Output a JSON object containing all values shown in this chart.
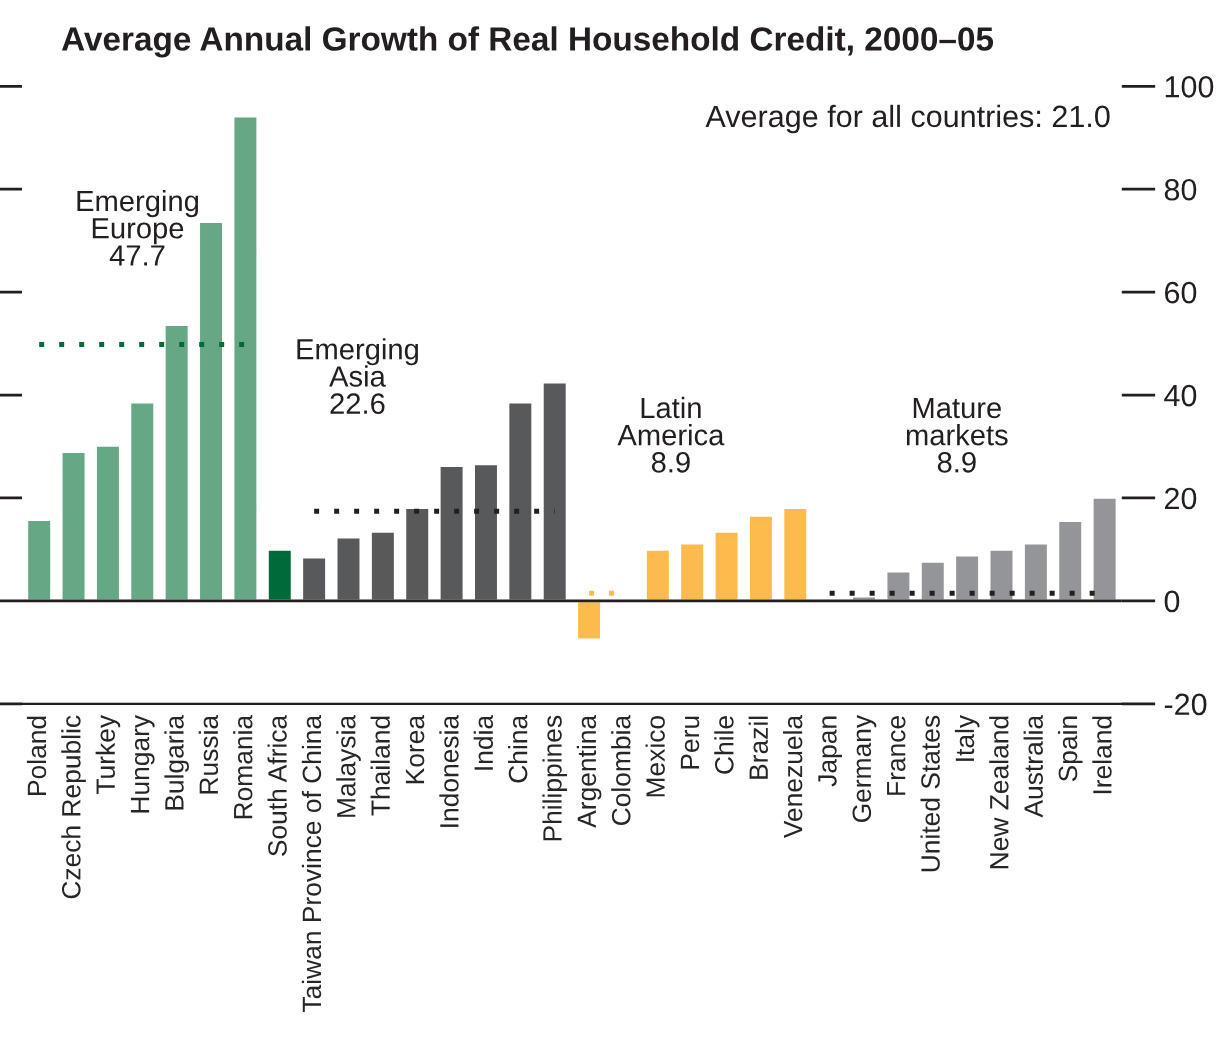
{
  "chart_data": {
    "type": "bar",
    "title": "Average Annual Growth of Real Household Credit, 2000–05",
    "categories": [
      "Poland",
      "Czech Republic",
      "Turkey",
      "Hungary",
      "Bulgaria",
      "Russia",
      "Romania",
      "South Africa",
      "Taiwan Province of China",
      "Malaysia",
      "Thailand",
      "Korea",
      "Indonesia",
      "India",
      "China",
      "Philippines",
      "Argentina",
      "Colombia",
      "Mexico",
      "Peru",
      "Chile",
      "Brazil",
      "Venezuela",
      "Japan",
      "Germany",
      "France",
      "United States",
      "Italy",
      "New Zealand",
      "Australia",
      "Spain",
      "Ireland"
    ],
    "series": [
      {
        "values": [
          15.8,
          29.0,
          30.2,
          38.6,
          53.7,
          73.7,
          94.2,
          10.0,
          8.5,
          12.4,
          13.5,
          18.1,
          26.3,
          26.6,
          38.6,
          42.5,
          -7.6,
          null,
          10.0,
          11.2,
          13.5,
          16.6,
          18.1,
          0.4,
          0.9,
          5.8,
          7.7,
          8.9,
          10.0,
          11.2,
          15.6,
          20.1
        ],
        "colors": [
          "#66a886",
          "#66a886",
          "#66a886",
          "#66a886",
          "#66a886",
          "#66a886",
          "#66a886",
          "#006b3a",
          "#58595b",
          "#58595b",
          "#58595b",
          "#58595b",
          "#58595b",
          "#58595b",
          "#58595b",
          "#58595b",
          "#fdbb4e",
          "#fdbb4e",
          "#fdbb4e",
          "#fdbb4e",
          "#fdbb4e",
          "#fdbb4e",
          "#fdbb4e",
          "#939598",
          "#939598",
          "#939598",
          "#939598",
          "#939598",
          "#939598",
          "#939598",
          "#939598",
          "#939598"
        ]
      },
      {
        "type": "line",
        "color": "#006b3a",
        "line_style": "dotted",
        "values": [
          49.8,
          49.8,
          49.8,
          49.8,
          49.8,
          49.8,
          49.8,
          null,
          null,
          null,
          null,
          null,
          null,
          null,
          null,
          null,
          null,
          null,
          null,
          null,
          null,
          null,
          null,
          null,
          null,
          null,
          null,
          null,
          null,
          null,
          null,
          null
        ]
      },
      {
        "type": "line",
        "color": "#231f20",
        "line_style": "dotted",
        "values": [
          null,
          null,
          null,
          null,
          null,
          null,
          null,
          null,
          17.4,
          17.4,
          17.4,
          17.4,
          17.4,
          17.4,
          17.4,
          17.4,
          null,
          null,
          null,
          null,
          null,
          null,
          null,
          null,
          null,
          null,
          null,
          null,
          null,
          null,
          null,
          null
        ]
      },
      {
        "type": "line",
        "color": "#fdbb4e",
        "line_style": "dotted",
        "values": [
          null,
          null,
          null,
          null,
          null,
          null,
          null,
          null,
          null,
          null,
          null,
          null,
          null,
          null,
          null,
          null,
          1.5,
          1.5,
          null,
          null,
          null,
          null,
          null,
          null,
          null,
          null,
          null,
          null,
          null,
          null,
          null,
          null
        ]
      },
      {
        "type": "line",
        "color": "#231f20",
        "line_style": "dotted",
        "values": [
          null,
          null,
          null,
          null,
          null,
          null,
          null,
          null,
          null,
          null,
          null,
          null,
          null,
          null,
          null,
          null,
          null,
          null,
          null,
          null,
          null,
          null,
          null,
          1.5,
          1.5,
          1.5,
          1.5,
          1.5,
          1.5,
          1.5,
          1.5,
          1.5
        ]
      }
    ],
    "ylim": [
      -20,
      100
    ],
    "yticks": [
      -20,
      0,
      20,
      40,
      60,
      80,
      100
    ],
    "annotations": [
      "Emerging\nEurope\n47.7",
      "Emerging\nAsia\n22.6",
      "Latin\nAmerica\n8.9",
      "Mature\nmarkets\n8.9",
      "Average for all countries: 21.0"
    ],
    "grid": false,
    "legend": false
  }
}
